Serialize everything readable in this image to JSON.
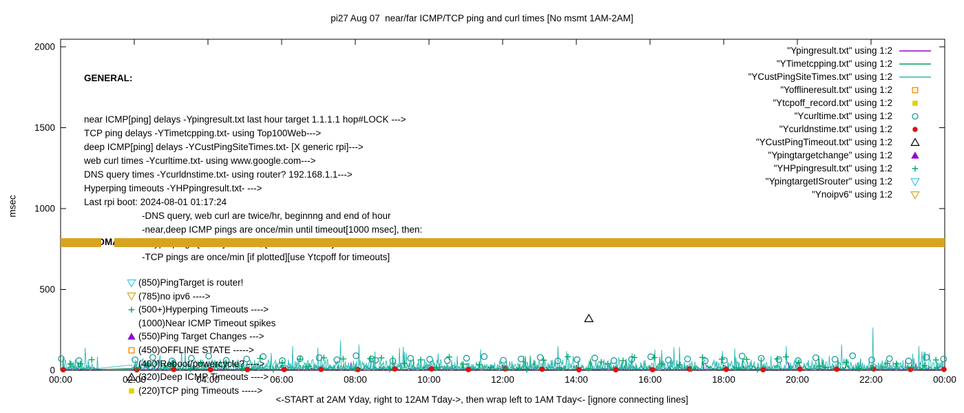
{
  "general": {
    "heading": "GENERAL:",
    "lines": [
      "near ICMP[ping] delays -Ypingresult.txt last hour target 1.1.1.1 hop#LOCK --->",
      "TCP ping delays -YTimetcpping.txt- using Top100Web--->",
      "deep ICMP[ping] delays -YCustPingSiteTimes.txt- [X generic rpi]--->",
      "web curl times -Ycurltime.txt- using www.google.com--->",
      "DNS query times -Ycurldnstime.txt- using router? 192.168.1.1--->",
      "Hyperping timeouts -YHPpingresult.txt- --->",
      "Last rpi boot: 2024-08-01 01:17:24"
    ],
    "indented_lines": [
      "-DNS query, web curl are twice/hr, beginnng and end of hour",
      "-near,deep ICMP pings are once/min until timeout[1000 msec], then:",
      " -Hyperpings [6/min] initiated; [vertical stacked] ticks are timeouts",
      "-TCP pings are once/min [if plotted][use Ytcpoff for timeouts]"
    ]
  },
  "anomalies": {
    "heading": "ANOMALIES:",
    "items": [
      {
        "marker": "triangle-down-open",
        "color": "#3bc3e8",
        "text": "(850)PingTarget is router!"
      },
      {
        "marker": "triangle-down-open",
        "color": "#d8a420",
        "text": "(785)no ipv6 ---->"
      },
      {
        "marker": "plus",
        "color": "#00a860",
        "text": "(500+)Hyperping Timeouts ---->"
      },
      {
        "marker": "none",
        "color": "#000000",
        "text": "(1000)Near ICMP Timeout spikes"
      },
      {
        "marker": "triangle-filled",
        "color": "#9400d3",
        "text": "(550)Ping Target Changes --->"
      },
      {
        "marker": "square-open",
        "color": "#ff8c00",
        "text": "(450)OFFLINE STATE ----->"
      },
      {
        "marker": "none",
        "color": "#000000",
        "text": "(400)Reboot/powercycle? ---->"
      },
      {
        "marker": "triangle-open",
        "color": "#000000",
        "text": "(320)Deep ICMP Timeouts ---->"
      },
      {
        "marker": "square-filled",
        "color": "#e3d400",
        "text": "(220)TCP ping Timeouts ----->"
      }
    ]
  },
  "chart_data": {
    "type": "line",
    "title": "pi27 Aug 07  near/far ICMP/TCP ping and curl times [No msmt 1AM-2AM]",
    "xlabel": "",
    "ylabel": "msec",
    "x_caption": "<-START at 2AM Yday, right to 12AM Tday->, then wrap left to 1AM Tday<- [ignore connecting lines]",
    "x_unit": "hours of day",
    "x_range": [
      0,
      24
    ],
    "x_ticks": [
      "00:00",
      "02:00",
      "04:00",
      "06:00",
      "08:00",
      "10:00",
      "12:00",
      "14:00",
      "16:00",
      "18:00",
      "20:00",
      "22:00",
      "00:00"
    ],
    "y_range": [
      0,
      2000
    ],
    "y_ticks": [
      0,
      500,
      1000,
      1500,
      2000
    ],
    "grid": false,
    "legend_position": "top-right-inside",
    "no_measurement_gap_hours": [
      1.03,
      1.93
    ],
    "series": [
      {
        "label": "\"Ypingresult.txt\" using 1:2",
        "color": "#9400d3",
        "sample": "line",
        "kind": "noise",
        "cfg": {
          "seed": 11,
          "pph": 60,
          "base": 3,
          "amp": 9,
          "pow": 2,
          "spike_prob": 0.003,
          "spike_max": 55
        }
      },
      {
        "label": "\"YTimetcpping.txt\" using 1:2",
        "color": "#00a060",
        "sample": "line",
        "kind": "noise",
        "cfg": {
          "seed": 23,
          "pph": 60,
          "base": 4,
          "amp": 28,
          "pow": 2,
          "spike_prob": 0.012,
          "spike_max": 95
        }
      },
      {
        "label": "\"YCustPingSiteTimes.txt\" using 1:2",
        "color": "#2cb8b8",
        "sample": "line",
        "kind": "noise",
        "cfg": {
          "seed": 37,
          "pph": 60,
          "base": 6,
          "amp": 62,
          "pow": 2,
          "spike_prob": 0.02,
          "spike_max": 145,
          "spikes": [
            [
              2.7,
              95
            ],
            [
              6.3,
              150
            ],
            [
              7.6,
              185
            ],
            [
              8.1,
              160
            ],
            [
              9.2,
              140
            ],
            [
              11.4,
              130
            ],
            [
              13.5,
              150
            ],
            [
              16.8,
              145
            ],
            [
              18.3,
              135
            ],
            [
              19.7,
              150
            ],
            [
              21.2,
              160
            ],
            [
              22.05,
              265
            ],
            [
              23.3,
              150
            ]
          ]
        }
      },
      {
        "label": "\"Yofflineresult.txt\" using 1:2",
        "color": "#ff8c00",
        "sample": "square-open",
        "kind": "scatter",
        "points": []
      },
      {
        "label": "\"Ytcpoff_record.txt\" using 1:2",
        "color": "#e3d400",
        "sample": "square-filled",
        "kind": "scatter",
        "points": []
      },
      {
        "label": "\"Ycurltime.txt\" using 1:2",
        "color": "#189a9a",
        "sample": "circle-open",
        "kind": "scatter",
        "points": [
          [
            0.02,
            72
          ],
          [
            0.5,
            60
          ],
          [
            2.02,
            65
          ],
          [
            2.5,
            80
          ],
          [
            3.02,
            58
          ],
          [
            3.55,
            75
          ],
          [
            4.02,
            88
          ],
          [
            4.5,
            62
          ],
          [
            5.05,
            70
          ],
          [
            5.5,
            85
          ],
          [
            6.02,
            60
          ],
          [
            6.5,
            72
          ],
          [
            7.02,
            78
          ],
          [
            7.5,
            65
          ],
          [
            8.02,
            90
          ],
          [
            8.45,
            70
          ],
          [
            8.55,
            62
          ],
          [
            9.02,
            58
          ],
          [
            9.5,
            74
          ],
          [
            10.02,
            68
          ],
          [
            10.5,
            60
          ],
          [
            11.02,
            75
          ],
          [
            11.5,
            85
          ],
          [
            12.02,
            62
          ],
          [
            12.5,
            70
          ],
          [
            13.02,
            80
          ],
          [
            13.5,
            58
          ],
          [
            14.02,
            66
          ],
          [
            14.5,
            76
          ],
          [
            15.02,
            60
          ],
          [
            15.5,
            68
          ],
          [
            16.02,
            84
          ],
          [
            16.5,
            64
          ],
          [
            17.02,
            70
          ],
          [
            17.5,
            58
          ],
          [
            18.02,
            62
          ],
          [
            18.5,
            88
          ],
          [
            19.02,
            74
          ],
          [
            19.5,
            66
          ],
          [
            20.02,
            60
          ],
          [
            20.5,
            78
          ],
          [
            21.02,
            68
          ],
          [
            21.5,
            90
          ],
          [
            22.02,
            64
          ],
          [
            22.5,
            72
          ],
          [
            23.02,
            58
          ],
          [
            23.5,
            80
          ],
          [
            23.97,
            70
          ]
        ]
      },
      {
        "label": "\"Ycurldnstime.txt\" using 1:2",
        "color": "#dd1111",
        "sample": "circle-filled",
        "kind": "scatter-rule",
        "cfg": {
          "seed": 51,
          "offset": 0.07,
          "value": 6,
          "skip_hours": [
            1
          ]
        }
      },
      {
        "label": "\"YCustPingTimeout.txt\" using 1:2",
        "color": "#000000",
        "sample": "triangle-open",
        "kind": "scatter",
        "points": [
          [
            14.34,
            320
          ]
        ]
      },
      {
        "label": "\"Ypingtargetchange\" using 1:2",
        "color": "#9400d3",
        "sample": "triangle-filled",
        "kind": "scatter",
        "points": []
      },
      {
        "label": "\"YHPpingresult.txt\" using 1:2",
        "color": "#00a860",
        "sample": "plus",
        "kind": "plus-rule",
        "cfg": {
          "seed": 67,
          "start": 0.15,
          "step": 0.37,
          "jitter": 0.12,
          "vmin": 4,
          "vmax": 85
        }
      },
      {
        "label": "\"YpingtargetISrouter\" using 1:2",
        "color": "#3bc3e8",
        "sample": "triangle-down-open",
        "kind": "scatter",
        "points": []
      },
      {
        "label": "\"Ynoipv6\" using 1:2",
        "color": "#d8a420",
        "sample": "triangle-down-open",
        "kind": "band",
        "band": {
          "y_ms": 788,
          "half_height_ms": 28,
          "segments_hours": [
            [
              0,
              1.1
            ],
            [
              1.46,
              24
            ]
          ]
        }
      }
    ]
  }
}
